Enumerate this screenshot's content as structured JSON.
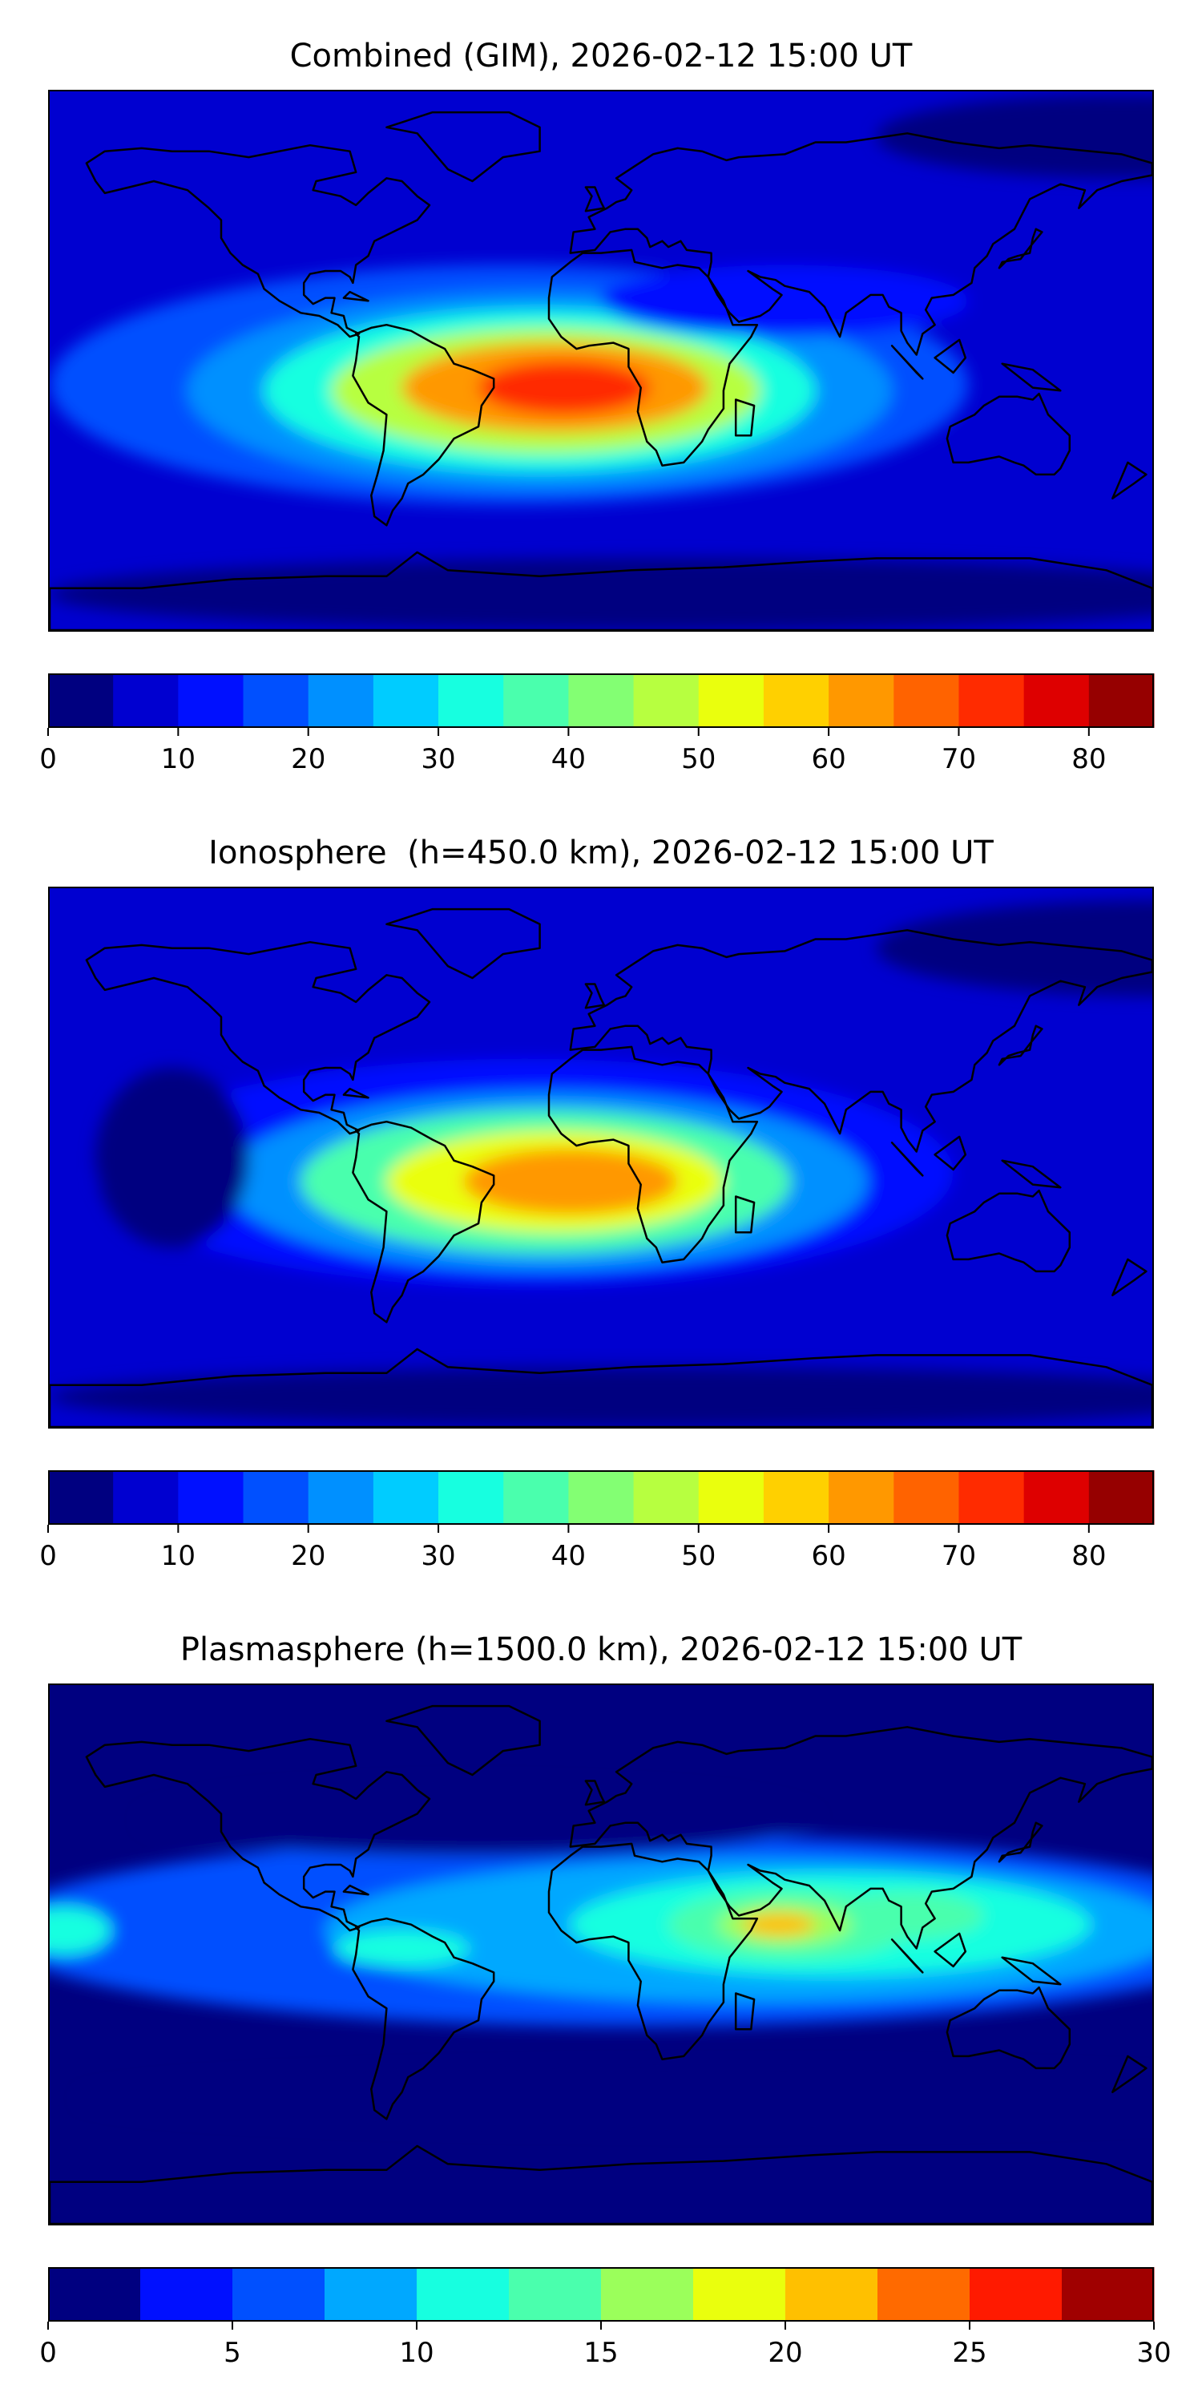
{
  "chart_data": [
    {
      "type": "heatmap",
      "title": "Combined (GIM), 2026-02-12 15:00 UT",
      "colorbar": {
        "levels": [
          0,
          5,
          10,
          15,
          20,
          25,
          30,
          35,
          40,
          45,
          50,
          55,
          60,
          65,
          70,
          75,
          80,
          85
        ],
        "ticks": [
          0,
          10,
          20,
          30,
          40,
          50,
          60,
          70,
          80
        ],
        "tick_labels": [
          "0",
          "10",
          "20",
          "30",
          "40",
          "50",
          "60",
          "70",
          "80"
        ],
        "colors": [
          "#000080",
          "#0000d0",
          "#0010ff",
          "#0050ff",
          "#0090ff",
          "#00ccff",
          "#17ffe0",
          "#4affad",
          "#83ff73",
          "#b7ff40",
          "#eaff0d",
          "#ffd000",
          "#ff9800",
          "#ff6300",
          "#ff2b00",
          "#de0000",
          "#960000"
        ]
      },
      "field": {
        "background": 7,
        "blobs": [
          {
            "lon": -30,
            "lat": -8,
            "rx": 150,
            "ry": 40,
            "value": 15
          },
          {
            "lon": -20,
            "lat": -10,
            "rx": 115,
            "ry": 33,
            "value": 23
          },
          {
            "lon": -20,
            "lat": -10,
            "rx": 90,
            "ry": 27,
            "value": 33
          },
          {
            "lon": -18,
            "lat": -10,
            "rx": 70,
            "ry": 21,
            "value": 48
          },
          {
            "lon": -15,
            "lat": -9,
            "rx": 50,
            "ry": 15,
            "value": 62
          },
          {
            "lon": -12,
            "lat": -9,
            "rx": 28,
            "ry": 9,
            "value": 72
          },
          {
            "lon": 60,
            "lat": 20,
            "rx": 60,
            "ry": 12,
            "value": 14
          },
          {
            "lon": 170,
            "lat": 75,
            "rx": 80,
            "ry": 14,
            "value": 3
          },
          {
            "lon": 20,
            "lat": -78,
            "rx": 200,
            "ry": 12,
            "value": 3
          }
        ]
      }
    },
    {
      "type": "heatmap",
      "title": "Ionosphere  (h=450.0 km), 2026-02-12 15:00 UT",
      "colorbar": {
        "levels": [
          0,
          5,
          10,
          15,
          20,
          25,
          30,
          35,
          40,
          45,
          50,
          55,
          60,
          65,
          70,
          75,
          80,
          85
        ],
        "ticks": [
          0,
          10,
          20,
          30,
          40,
          50,
          60,
          70,
          80
        ],
        "tick_labels": [
          "0",
          "10",
          "20",
          "30",
          "40",
          "50",
          "60",
          "70",
          "80"
        ],
        "colors": [
          "#000080",
          "#0000d0",
          "#0010ff",
          "#0050ff",
          "#0090ff",
          "#00ccff",
          "#17ffe0",
          "#4affad",
          "#83ff73",
          "#b7ff40",
          "#eaff0d",
          "#ffd000",
          "#ff9800",
          "#ff6300",
          "#ff2b00",
          "#de0000",
          "#960000"
        ]
      },
      "field": {
        "background": 7,
        "blobs": [
          {
            "lon": -25,
            "lat": -5,
            "rx": 140,
            "ry": 38,
            "value": 14
          },
          {
            "lon": -18,
            "lat": -8,
            "rx": 105,
            "ry": 30,
            "value": 24
          },
          {
            "lon": -18,
            "lat": -8,
            "rx": 80,
            "ry": 24,
            "value": 38
          },
          {
            "lon": -15,
            "lat": -8,
            "rx": 55,
            "ry": 17,
            "value": 52
          },
          {
            "lon": -10,
            "lat": -8,
            "rx": 35,
            "ry": 11,
            "value": 61
          },
          {
            "lon": -140,
            "lat": 0,
            "rx": 25,
            "ry": 30,
            "value": 3
          },
          {
            "lon": 180,
            "lat": 70,
            "rx": 90,
            "ry": 16,
            "value": 3
          },
          {
            "lon": 20,
            "lat": -80,
            "rx": 200,
            "ry": 10,
            "value": 3
          }
        ]
      }
    },
    {
      "type": "heatmap",
      "title": "Plasmasphere (h=1500.0 km), 2026-02-12 15:00 UT",
      "colorbar": {
        "levels": [
          0,
          2.5,
          5,
          7.5,
          10,
          12.5,
          15,
          17.5,
          20,
          22.5,
          25,
          27.5,
          30
        ],
        "ticks": [
          0,
          5,
          10,
          15,
          20,
          25,
          30
        ],
        "tick_labels": [
          "0",
          "5",
          "10",
          "15",
          "20",
          "25",
          "30"
        ],
        "colors": [
          "#000080",
          "#0010ff",
          "#0050ff",
          "#00a8ff",
          "#17ffe0",
          "#4affad",
          "#9bff5b",
          "#eaff0d",
          "#ffc000",
          "#ff6a00",
          "#ff1a00",
          "#a00000"
        ]
      },
      "field": {
        "background": 2,
        "blobs": [
          {
            "lon": 10,
            "lat": 8,
            "rx": 210,
            "ry": 32,
            "value": 6
          },
          {
            "lon": 50,
            "lat": 8,
            "rx": 140,
            "ry": 24,
            "value": 8.5
          },
          {
            "lon": 75,
            "lat": 10,
            "rx": 85,
            "ry": 17,
            "value": 11
          },
          {
            "lon": 62,
            "lat": 10,
            "rx": 40,
            "ry": 12,
            "value": 13.5
          },
          {
            "lon": 100,
            "lat": 13,
            "rx": 25,
            "ry": 8,
            "value": 13.5
          },
          {
            "lon": 60,
            "lat": 10,
            "rx": 22,
            "ry": 7,
            "value": 16
          },
          {
            "lon": 58,
            "lat": 10,
            "rx": 12,
            "ry": 4,
            "value": 21
          },
          {
            "lon": -65,
            "lat": 2,
            "rx": 22,
            "ry": 6,
            "value": 11
          },
          {
            "lon": -175,
            "lat": 8,
            "rx": 15,
            "ry": 8,
            "value": 10
          },
          {
            "lon": -40,
            "lat": 45,
            "rx": 110,
            "ry": 12,
            "value": 1
          },
          {
            "lon": 40,
            "lat": -48,
            "rx": 210,
            "ry": 10,
            "value": 1
          }
        ]
      }
    }
  ]
}
